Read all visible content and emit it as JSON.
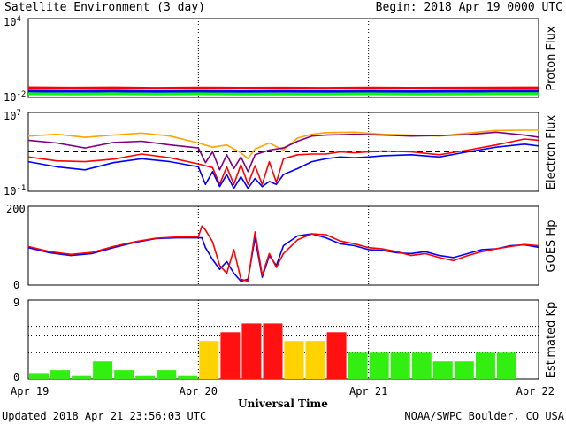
{
  "header": {
    "title": "Satellite Environment (3 day)",
    "begin": "Begin:  2018 Apr 19 0000 UTC"
  },
  "footer": {
    "updated": "Updated 2018 Apr 21 23:56:03 UTC",
    "credit": "NOAA/SWPC Boulder, CO USA"
  },
  "chart_data": [
    {
      "type": "line",
      "id": "proton",
      "ylabel": "Proton Flux",
      "yscale": "log",
      "ylim": [
        0.01,
        10000
      ],
      "yticks": [
        {
          "exp": "4",
          "value": 10000
        },
        {
          "exp": "-2",
          "value": 0.01
        }
      ],
      "threshold": 10,
      "xlim": [
        0,
        72
      ],
      "series": [
        {
          "color": "#ff0000",
          "x": [
            0,
            6,
            12,
            18,
            24,
            30,
            36,
            42,
            48,
            54,
            60,
            66,
            72
          ],
          "y": [
            0.055,
            0.052,
            0.054,
            0.05,
            0.053,
            0.051,
            0.052,
            0.05,
            0.053,
            0.051,
            0.052,
            0.053,
            0.054
          ]
        },
        {
          "color": "#0000ff",
          "x": [
            0,
            6,
            12,
            18,
            24,
            30,
            36,
            42,
            48,
            54,
            60,
            66,
            72
          ],
          "y": [
            0.03,
            0.029,
            0.03,
            0.028,
            0.029,
            0.028,
            0.029,
            0.028,
            0.029,
            0.028,
            0.029,
            0.03,
            0.03
          ]
        },
        {
          "color": "#00ff00",
          "x": [
            0,
            6,
            12,
            18,
            24,
            30,
            36,
            42,
            48,
            54,
            60,
            66,
            72
          ],
          "y": [
            0.019,
            0.018,
            0.019,
            0.018,
            0.019,
            0.018,
            0.018,
            0.018,
            0.019,
            0.018,
            0.018,
            0.019,
            0.019
          ]
        }
      ]
    },
    {
      "type": "line",
      "id": "electron",
      "ylabel": "Electron Flux",
      "yscale": "log",
      "ylim": [
        0.1,
        10000000
      ],
      "yticks": [
        {
          "exp": "7",
          "value": 10000000
        },
        {
          "exp": "-1",
          "value": 0.1
        }
      ],
      "threshold": 1000,
      "xlim": [
        0,
        72
      ],
      "series": [
        {
          "color": "#ffa500",
          "x": [
            0,
            4,
            8,
            12,
            16,
            20,
            24,
            26,
            28,
            30,
            31,
            32,
            34,
            36,
            38,
            40,
            42,
            46,
            50,
            54,
            58,
            62,
            66,
            70,
            72
          ],
          "y": [
            40000,
            60000,
            30000,
            50000,
            80000,
            40000,
            8000,
            3000,
            5000,
            800,
            200,
            2000,
            8000,
            1500,
            25000,
            60000,
            90000,
            100000,
            60000,
            50000,
            40000,
            80000,
            150000,
            160000,
            160000
          ]
        },
        {
          "color": "#800080",
          "x": [
            0,
            4,
            8,
            12,
            16,
            20,
            24,
            25,
            26,
            27,
            28,
            29,
            30,
            31,
            32,
            34,
            36,
            38,
            40,
            42,
            46,
            50,
            54,
            58,
            62,
            66,
            70,
            72
          ],
          "y": [
            15000,
            8000,
            2500,
            9000,
            12000,
            5000,
            2500,
            80,
            1000,
            15,
            500,
            20,
            300,
            10,
            500,
            1500,
            2500,
            12000,
            40000,
            50000,
            60000,
            50000,
            40000,
            45000,
            55000,
            100000,
            50000,
            30000
          ]
        },
        {
          "color": "#ff0000",
          "x": [
            0,
            4,
            8,
            12,
            16,
            20,
            24,
            26,
            27,
            28,
            29,
            30,
            31,
            32,
            33,
            34,
            35,
            36,
            38,
            40,
            42,
            44,
            46,
            48,
            50,
            54,
            58,
            62,
            66,
            70,
            72
          ],
          "y": [
            300,
            120,
            100,
            180,
            600,
            250,
            60,
            25,
            0.5,
            30,
            0.5,
            50,
            0.5,
            40,
            0.5,
            100,
            0.8,
            200,
            500,
            600,
            600,
            1000,
            800,
            1000,
            1200,
            1000,
            500,
            1500,
            5000,
            20000,
            15000
          ]
        },
        {
          "color": "#0000ff",
          "x": [
            0,
            4,
            8,
            12,
            16,
            20,
            24,
            25,
            26,
            27,
            28,
            29,
            30,
            31,
            32,
            33,
            34,
            35,
            36,
            38,
            40,
            42,
            44,
            46,
            48,
            50,
            54,
            58,
            62,
            66,
            70,
            72
          ],
          "y": [
            100,
            30,
            15,
            80,
            200,
            100,
            30,
            0.5,
            10,
            0.3,
            5,
            0.2,
            3,
            0.2,
            2,
            0.3,
            1,
            0.5,
            5,
            20,
            100,
            200,
            300,
            250,
            300,
            400,
            500,
            300,
            1000,
            3000,
            6000,
            4000
          ]
        }
      ]
    },
    {
      "type": "line",
      "id": "goes_hp",
      "ylabel": "GOES Hp",
      "ylim": [
        0,
        200
      ],
      "yticks": [
        {
          "label": "200",
          "value": 200
        },
        {
          "label": "0",
          "value": 0
        }
      ],
      "xlim": [
        0,
        72
      ],
      "series": [
        {
          "color": "#0000ff",
          "x": [
            0,
            3,
            6,
            9,
            12,
            15,
            18,
            21,
            24,
            24.5,
            25,
            26,
            27,
            28,
            29,
            30,
            31,
            32,
            33,
            34,
            35,
            36,
            38,
            40,
            42,
            44,
            46,
            48,
            50,
            52,
            54,
            56,
            58,
            60,
            62,
            64,
            66,
            68,
            70,
            72
          ],
          "y": [
            95,
            82,
            75,
            80,
            95,
            108,
            118,
            120,
            120,
            120,
            95,
            65,
            40,
            60,
            30,
            10,
            15,
            120,
            20,
            75,
            50,
            100,
            125,
            130,
            120,
            105,
            100,
            90,
            88,
            82,
            80,
            85,
            75,
            70,
            80,
            90,
            92,
            100,
            102,
            96
          ]
        },
        {
          "color": "#ff0000",
          "x": [
            0,
            3,
            6,
            9,
            12,
            15,
            18,
            21,
            24,
            24.5,
            25,
            26,
            27,
            28,
            29,
            30,
            31,
            32,
            33,
            34,
            35,
            36,
            38,
            40,
            42,
            44,
            46,
            48,
            50,
            52,
            54,
            56,
            58,
            60,
            62,
            64,
            66,
            68,
            70,
            72
          ],
          "y": [
            98,
            85,
            78,
            83,
            98,
            110,
            119,
            122,
            123,
            150,
            140,
            110,
            50,
            30,
            90,
            15,
            10,
            135,
            25,
            80,
            45,
            80,
            115,
            130,
            128,
            112,
            105,
            95,
            92,
            85,
            75,
            80,
            70,
            62,
            75,
            85,
            92,
            98,
            103,
            100
          ]
        }
      ]
    },
    {
      "type": "bar",
      "id": "kp",
      "ylabel": "Estimated Kp",
      "ylim": [
        0,
        9
      ],
      "yticks": [
        {
          "label": "9",
          "value": 9
        },
        {
          "label": "0",
          "value": 0
        }
      ],
      "colors": {
        "green": "#33ee11",
        "yellow": "#ffd200",
        "red": "#ff1111"
      },
      "values": [
        0.67,
        1.0,
        0.33,
        2.0,
        1.0,
        0.33,
        1.0,
        0.33,
        4.33,
        5.33,
        6.33,
        6.33,
        4.33,
        4.33,
        5.33,
        3.0,
        3.0,
        3.0,
        3.0,
        2.0,
        2.0,
        3.0,
        3.0
      ],
      "bar_colors": [
        "green",
        "green",
        "green",
        "green",
        "green",
        "green",
        "green",
        "green",
        "yellow",
        "red",
        "red",
        "red",
        "yellow",
        "yellow",
        "red",
        "green",
        "green",
        "green",
        "green",
        "green",
        "green",
        "green",
        "green"
      ]
    }
  ],
  "x_axis": {
    "label": "Universal Time",
    "ticks": [
      {
        "label": "Apr 19",
        "hours": 0
      },
      {
        "label": "Apr 20",
        "hours": 24
      },
      {
        "label": "Apr 21",
        "hours": 48
      },
      {
        "label": "Apr 22",
        "hours": 72
      }
    ]
  }
}
